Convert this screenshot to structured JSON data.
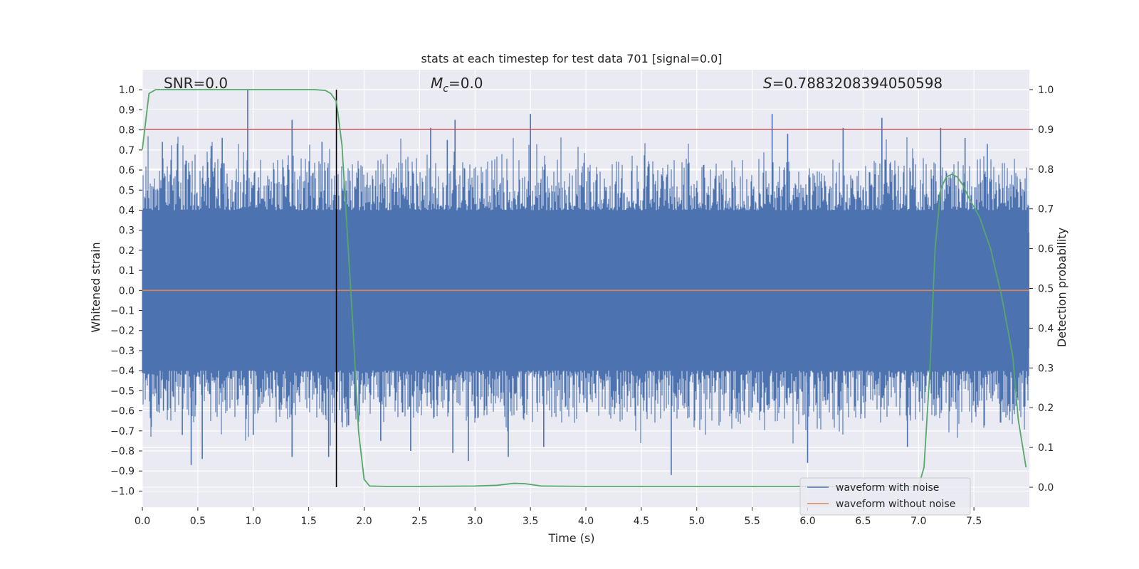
{
  "chart_data": {
    "type": "line",
    "title": "stats at each timestep for test data 701 [signal=0.0]",
    "xlabel": "Time (s)",
    "ylabel": "Whitened strain",
    "y2label": "Detection probability",
    "xlim": [
      0.0,
      8.0
    ],
    "ylim": [
      -1.08,
      1.1
    ],
    "y2lim": [
      -0.05,
      1.05
    ],
    "x_ticks": [
      0.0,
      0.5,
      1.0,
      1.5,
      2.0,
      2.5,
      3.0,
      3.5,
      4.0,
      4.5,
      5.0,
      5.5,
      6.0,
      6.5,
      7.0,
      7.5
    ],
    "x_tick_labels": [
      "0.0",
      "0.5",
      "1.0",
      "1.5",
      "2.0",
      "2.5",
      "3.0",
      "3.5",
      "4.0",
      "4.5",
      "5.0",
      "5.5",
      "6.0",
      "6.5",
      "7.0",
      "7.5"
    ],
    "y_ticks": [
      1.0,
      0.9,
      0.8,
      0.7,
      0.6,
      0.5,
      0.4,
      0.3,
      0.2,
      0.1,
      0.0,
      -0.1,
      -0.2,
      -0.3,
      -0.4,
      -0.5,
      -0.6,
      -0.7,
      -0.8,
      -0.9,
      -1.0
    ],
    "y_tick_labels": [
      "1.0",
      "0.9",
      "0.8",
      "0.7",
      "0.6",
      "0.5",
      "0.4",
      "0.3",
      "0.2",
      "0.1",
      "0.0",
      "−0.1",
      "−0.2",
      "−0.3",
      "−0.4",
      "−0.5",
      "−0.6",
      "−0.7",
      "−0.8",
      "−0.9",
      "−1.0"
    ],
    "y2_ticks": [
      1.0,
      0.9,
      0.8,
      0.7,
      0.6,
      0.5,
      0.4,
      0.3,
      0.2,
      0.1,
      0.0
    ],
    "y2_tick_labels": [
      "1.0",
      "0.9",
      "0.8",
      "0.7",
      "0.6",
      "0.5",
      "0.4",
      "0.3",
      "0.2",
      "0.1",
      "0.0"
    ],
    "annotations": {
      "snr": "SNR=0.0",
      "mc_symbol": "M",
      "mc_sub": "c",
      "mc_value": "=0.0",
      "s_symbol": "S",
      "s_value": "=0.7883208394050598"
    },
    "series": [
      {
        "name": "waveform with noise",
        "color": "#4c72b0",
        "kind": "noise",
        "core_amplitude": 0.4,
        "spikes": [
          {
            "x": 0.02,
            "y": 0.38
          },
          {
            "x": 0.08,
            "y": -0.68
          },
          {
            "x": 0.18,
            "y": 0.6
          },
          {
            "x": 0.19,
            "y": -0.6
          },
          {
            "x": 0.18,
            "y": 0.74
          },
          {
            "x": 0.36,
            "y": -0.72
          },
          {
            "x": 0.44,
            "y": -0.87
          },
          {
            "x": 0.54,
            "y": -0.84
          },
          {
            "x": 0.62,
            "y": 0.72
          },
          {
            "x": 0.72,
            "y": 0.76
          },
          {
            "x": 0.95,
            "y": 1.0
          },
          {
            "x": 1.0,
            "y": -0.72
          },
          {
            "x": 1.35,
            "y": 0.85
          },
          {
            "x": 1.35,
            "y": -0.83
          },
          {
            "x": 1.62,
            "y": 0.74
          },
          {
            "x": 1.68,
            "y": -0.83
          },
          {
            "x": 2.15,
            "y": -0.75
          },
          {
            "x": 2.42,
            "y": -0.8
          },
          {
            "x": 2.6,
            "y": 0.81
          },
          {
            "x": 2.75,
            "y": 0.75
          },
          {
            "x": 2.8,
            "y": -0.81
          },
          {
            "x": 2.82,
            "y": 0.85
          },
          {
            "x": 2.94,
            "y": -0.85
          },
          {
            "x": 3.3,
            "y": -0.83
          },
          {
            "x": 3.5,
            "y": 0.88
          },
          {
            "x": 3.62,
            "y": -0.78
          },
          {
            "x": 4.77,
            "y": -0.92
          },
          {
            "x": 5.68,
            "y": 0.88
          },
          {
            "x": 5.82,
            "y": 0.78
          },
          {
            "x": 6.0,
            "y": -0.86
          },
          {
            "x": 6.32,
            "y": 0.81
          },
          {
            "x": 6.67,
            "y": 0.86
          },
          {
            "x": 6.9,
            "y": -0.78
          },
          {
            "x": 7.2,
            "y": 0.81
          },
          {
            "x": 7.42,
            "y": 0.76
          },
          {
            "x": 7.62,
            "y": 0.73
          }
        ]
      },
      {
        "name": "waveform without noise",
        "color": "#dd8452",
        "kind": "constant",
        "y": 0.0
      },
      {
        "name": "detection probability",
        "color": "#55a868",
        "axis": "y2",
        "x": [
          0.0,
          0.06,
          0.12,
          0.3,
          1.0,
          1.55,
          1.65,
          1.7,
          1.75,
          1.8,
          1.9,
          1.95,
          2.0,
          2.05,
          2.2,
          2.5,
          3.0,
          3.2,
          3.35,
          3.45,
          3.6,
          4.0,
          5.0,
          6.0,
          7.0,
          7.05,
          7.1,
          7.15,
          7.2,
          7.25,
          7.3,
          7.35,
          7.4,
          7.45,
          7.55,
          7.65,
          7.75,
          7.85,
          7.9,
          7.97
        ],
        "values": [
          0.85,
          0.99,
          1.0,
          1.0,
          1.0,
          1.0,
          0.998,
          0.99,
          0.97,
          0.86,
          0.4,
          0.14,
          0.02,
          0.003,
          0.002,
          0.002,
          0.003,
          0.005,
          0.01,
          0.009,
          0.003,
          0.002,
          0.002,
          0.002,
          0.002,
          0.05,
          0.28,
          0.6,
          0.75,
          0.78,
          0.787,
          0.78,
          0.76,
          0.73,
          0.68,
          0.6,
          0.48,
          0.33,
          0.17,
          0.05
        ]
      }
    ],
    "threshold": {
      "y2": 0.9,
      "color": "#c44e52"
    },
    "marker_line": {
      "x": 1.75,
      "y2_from": 0.0,
      "y2_to": 1.0,
      "color": "#000000"
    },
    "legend": {
      "location": "lower-right",
      "entries": [
        "waveform with noise",
        "waveform without noise"
      ]
    },
    "style": {
      "axes_bg": "#eaeaf2",
      "grid_color": "#ffffff"
    }
  }
}
